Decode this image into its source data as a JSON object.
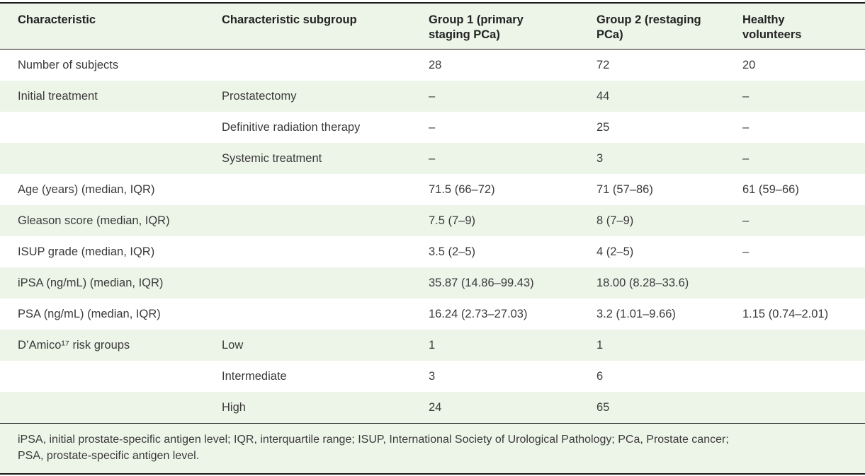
{
  "table": {
    "columns": [
      "Characteristic",
      "Characteristic subgroup",
      "Group 1 (primary staging PCa)",
      "Group 2 (restaging PCa)",
      "Healthy volunteers"
    ],
    "rows": [
      [
        "Number of subjects",
        "",
        "28",
        "72",
        "20"
      ],
      [
        "Initial treatment",
        "Prostatectomy",
        "–",
        "44",
        "–"
      ],
      [
        "",
        "Definitive radiation therapy",
        "–",
        "25",
        "–"
      ],
      [
        "",
        "Systemic treatment",
        "–",
        "3",
        "–"
      ],
      [
        "Age (years) (median, IQR)",
        "",
        "71.5 (66–72)",
        "71 (57–86)",
        "61 (59–66)"
      ],
      [
        "Gleason score (median, IQR)",
        "",
        "7.5 (7–9)",
        "8 (7–9)",
        "–"
      ],
      [
        "ISUP grade (median, IQR)",
        "",
        "3.5 (2–5)",
        "4 (2–5)",
        "–"
      ],
      [
        "iPSA (ng/mL) (median, IQR)",
        "",
        "35.87 (14.86–99.43)",
        "18.00 (8.28–33.6)",
        ""
      ],
      [
        "PSA (ng/mL) (median, IQR)",
        "",
        "16.24 (2.73–27.03)",
        "3.2 (1.01–9.66)",
        "1.15 (0.74–2.01)"
      ],
      [
        "D’Amico¹⁷ risk groups",
        "Low",
        "1",
        "1",
        ""
      ],
      [
        "",
        "Intermediate",
        "3",
        "6",
        ""
      ],
      [
        "",
        "High",
        "24",
        "65",
        ""
      ]
    ],
    "footnote_lines": [
      "iPSA, initial prostate-specific antigen level; IQR, interquartile range; ISUP, International Society of Urological Pathology; PCa, Prostate cancer;",
      "PSA, prostate-specific antigen level."
    ]
  },
  "colors": {
    "band_green": "#edf4e8",
    "rule_dark": "#1a1a1a",
    "body_text": "#3b3b3b",
    "header_text": "#232323"
  }
}
